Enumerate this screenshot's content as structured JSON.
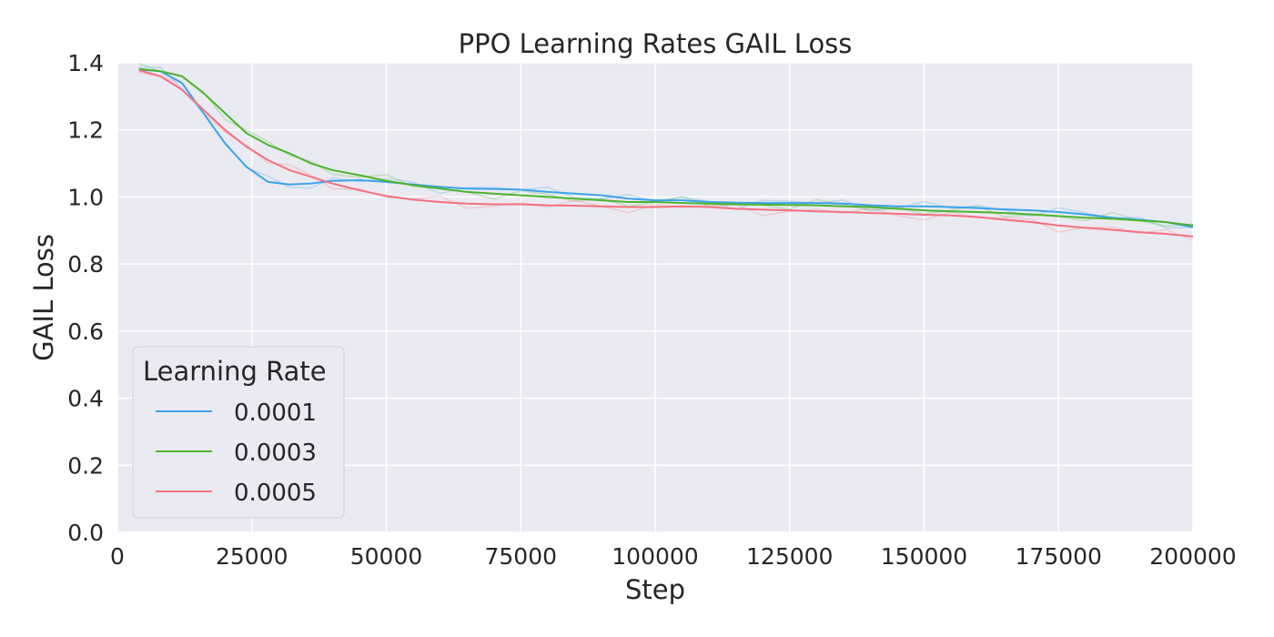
{
  "chart_data": {
    "type": "line",
    "title": "PPO Learning Rates GAIL Loss",
    "xlabel": "Step",
    "ylabel": "GAIL Loss",
    "xlim": [
      0,
      200000
    ],
    "ylim": [
      0,
      1.4
    ],
    "xticks": [
      0,
      25000,
      50000,
      75000,
      100000,
      125000,
      150000,
      175000,
      200000
    ],
    "yticks": [
      0.0,
      0.2,
      0.4,
      0.6,
      0.8,
      1.0,
      1.2,
      1.4
    ],
    "xtick_labels": [
      "0",
      "25000",
      "50000",
      "75000",
      "100000",
      "125000",
      "150000",
      "175000",
      "200000"
    ],
    "ytick_labels": [
      "0.0",
      "0.2",
      "0.4",
      "0.6",
      "0.8",
      "1.0",
      "1.2",
      "1.4"
    ],
    "grid": true,
    "legend": {
      "title": "Learning Rate",
      "placement": "lower-left"
    },
    "colors": {
      "background": "#EAEAF2",
      "grid": "#FFFFFF"
    },
    "series": [
      {
        "name": "0.0001",
        "color": "#3BA3EC",
        "x": [
          4000,
          8000,
          12000,
          16000,
          20000,
          24000,
          28000,
          32000,
          36000,
          40000,
          45000,
          50000,
          55000,
          60000,
          65000,
          70000,
          75000,
          80000,
          85000,
          90000,
          95000,
          100000,
          105000,
          110000,
          115000,
          120000,
          125000,
          130000,
          135000,
          140000,
          145000,
          150000,
          155000,
          160000,
          165000,
          170000,
          175000,
          180000,
          185000,
          190000,
          195000,
          200000
        ],
        "values": [
          1.38,
          1.375,
          1.34,
          1.25,
          1.16,
          1.09,
          1.045,
          1.037,
          1.04,
          1.048,
          1.05,
          1.045,
          1.037,
          1.03,
          1.025,
          1.024,
          1.022,
          1.015,
          1.01,
          1.005,
          0.995,
          0.99,
          0.99,
          0.985,
          0.983,
          0.982,
          0.982,
          0.982,
          0.98,
          0.975,
          0.972,
          0.972,
          0.97,
          0.967,
          0.963,
          0.96,
          0.955,
          0.948,
          0.938,
          0.932,
          0.925,
          0.91
        ]
      },
      {
        "name": "0.0003",
        "color": "#4DB42D",
        "x": [
          4000,
          8000,
          12000,
          16000,
          20000,
          24000,
          28000,
          32000,
          36000,
          40000,
          45000,
          50000,
          55000,
          60000,
          65000,
          70000,
          75000,
          80000,
          85000,
          90000,
          95000,
          100000,
          105000,
          110000,
          115000,
          120000,
          125000,
          130000,
          135000,
          140000,
          145000,
          150000,
          155000,
          160000,
          165000,
          170000,
          175000,
          180000,
          185000,
          190000,
          195000,
          200000
        ],
        "values": [
          1.382,
          1.375,
          1.36,
          1.31,
          1.25,
          1.19,
          1.155,
          1.13,
          1.1,
          1.08,
          1.065,
          1.048,
          1.035,
          1.025,
          1.015,
          1.01,
          1.005,
          1.0,
          0.995,
          0.99,
          0.985,
          0.985,
          0.982,
          0.98,
          0.978,
          0.977,
          0.976,
          0.975,
          0.972,
          0.97,
          0.965,
          0.96,
          0.957,
          0.955,
          0.952,
          0.948,
          0.943,
          0.938,
          0.935,
          0.93,
          0.925,
          0.915
        ]
      },
      {
        "name": "0.0005",
        "color": "#F2727E",
        "x": [
          4000,
          8000,
          12000,
          16000,
          20000,
          24000,
          28000,
          32000,
          36000,
          40000,
          45000,
          50000,
          55000,
          60000,
          65000,
          70000,
          75000,
          80000,
          85000,
          90000,
          95000,
          100000,
          105000,
          110000,
          115000,
          120000,
          125000,
          130000,
          135000,
          140000,
          145000,
          150000,
          155000,
          160000,
          165000,
          170000,
          175000,
          180000,
          185000,
          190000,
          195000,
          200000
        ],
        "values": [
          1.378,
          1.36,
          1.32,
          1.26,
          1.2,
          1.15,
          1.11,
          1.08,
          1.06,
          1.04,
          1.02,
          1.003,
          0.992,
          0.985,
          0.98,
          0.978,
          0.978,
          0.975,
          0.974,
          0.972,
          0.97,
          0.97,
          0.972,
          0.97,
          0.965,
          0.962,
          0.96,
          0.957,
          0.955,
          0.952,
          0.95,
          0.947,
          0.945,
          0.94,
          0.932,
          0.925,
          0.915,
          0.908,
          0.902,
          0.895,
          0.89,
          0.882
        ]
      }
    ]
  }
}
